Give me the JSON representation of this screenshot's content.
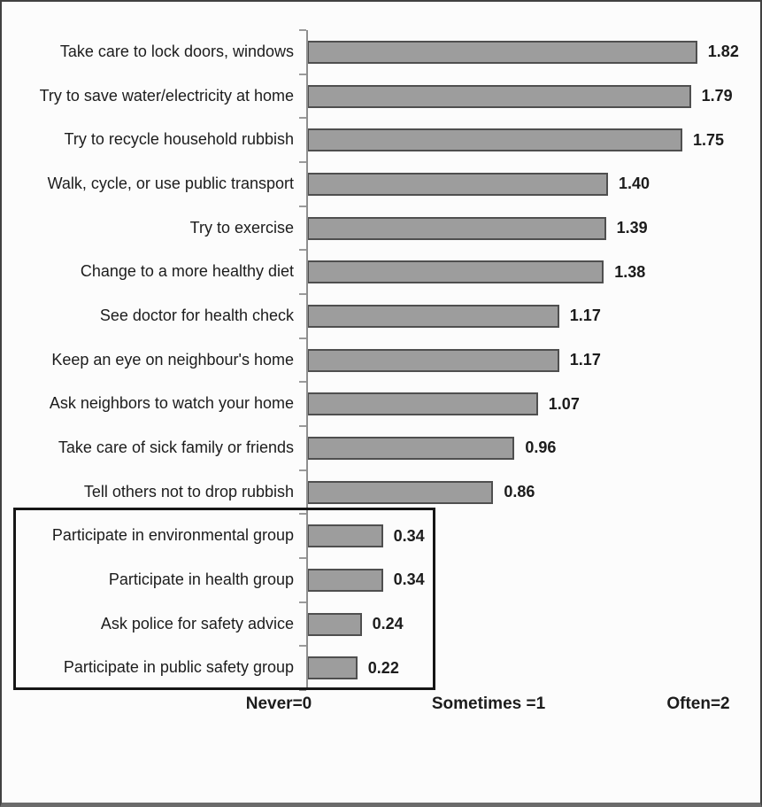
{
  "chart_data": {
    "type": "bar",
    "orientation": "horizontal",
    "title": "",
    "xlabel": "",
    "ylabel": "",
    "xlim": [
      0,
      2
    ],
    "grid": false,
    "legend": null,
    "bar_color": "#9d9d9d",
    "bar_border_color": "#4f4f4f",
    "axis_color": "#8f8f8f",
    "highlight_box": {
      "description": "black rectangle enclosing the bottom four categories",
      "rows_enclosed": [
        11,
        12,
        13,
        14
      ]
    },
    "x_axis_labels": [
      {
        "text": "Never=0",
        "value": 0
      },
      {
        "text": "Sometimes =1",
        "value": 1
      },
      {
        "text": "Often=2",
        "value": 2
      }
    ],
    "rows": [
      {
        "label": "Take care to lock doors, windows",
        "value": 1.82,
        "value_label": "1.82",
        "boxed": false
      },
      {
        "label": "Try to save water/electricity at home",
        "value": 1.79,
        "value_label": "1.79",
        "boxed": false
      },
      {
        "label": "Try to recycle household rubbish",
        "value": 1.75,
        "value_label": "1.75",
        "boxed": false
      },
      {
        "label": "Walk, cycle, or use public transport",
        "value": 1.4,
        "value_label": "1.40",
        "boxed": false
      },
      {
        "label": "Try to exercise",
        "value": 1.39,
        "value_label": "1.39",
        "boxed": false
      },
      {
        "label": "Change to a more healthy diet",
        "value": 1.38,
        "value_label": "1.38",
        "boxed": false
      },
      {
        "label": "See doctor for health check",
        "value": 1.17,
        "value_label": "1.17",
        "boxed": false
      },
      {
        "label": "Keep an eye on neighbour's home",
        "value": 1.17,
        "value_label": "1.17",
        "boxed": false
      },
      {
        "label": "Ask neighbors to watch your home",
        "value": 1.07,
        "value_label": "1.07",
        "boxed": false
      },
      {
        "label": "Take care of sick family or friends",
        "value": 0.96,
        "value_label": "0.96",
        "boxed": false
      },
      {
        "label": "Tell others not to drop rubbish",
        "value": 0.86,
        "value_label": "0.86",
        "boxed": false
      },
      {
        "label": "Participate in environmental group",
        "value": 0.34,
        "value_label": "0.34",
        "boxed": true
      },
      {
        "label": "Participate in health group",
        "value": 0.34,
        "value_label": "0.34",
        "boxed": true
      },
      {
        "label": "Ask police for safety advice",
        "value": 0.24,
        "value_label": "0.24",
        "boxed": true
      },
      {
        "label": "Participate in public safety group",
        "value": 0.22,
        "value_label": "0.22",
        "boxed": true
      }
    ]
  }
}
